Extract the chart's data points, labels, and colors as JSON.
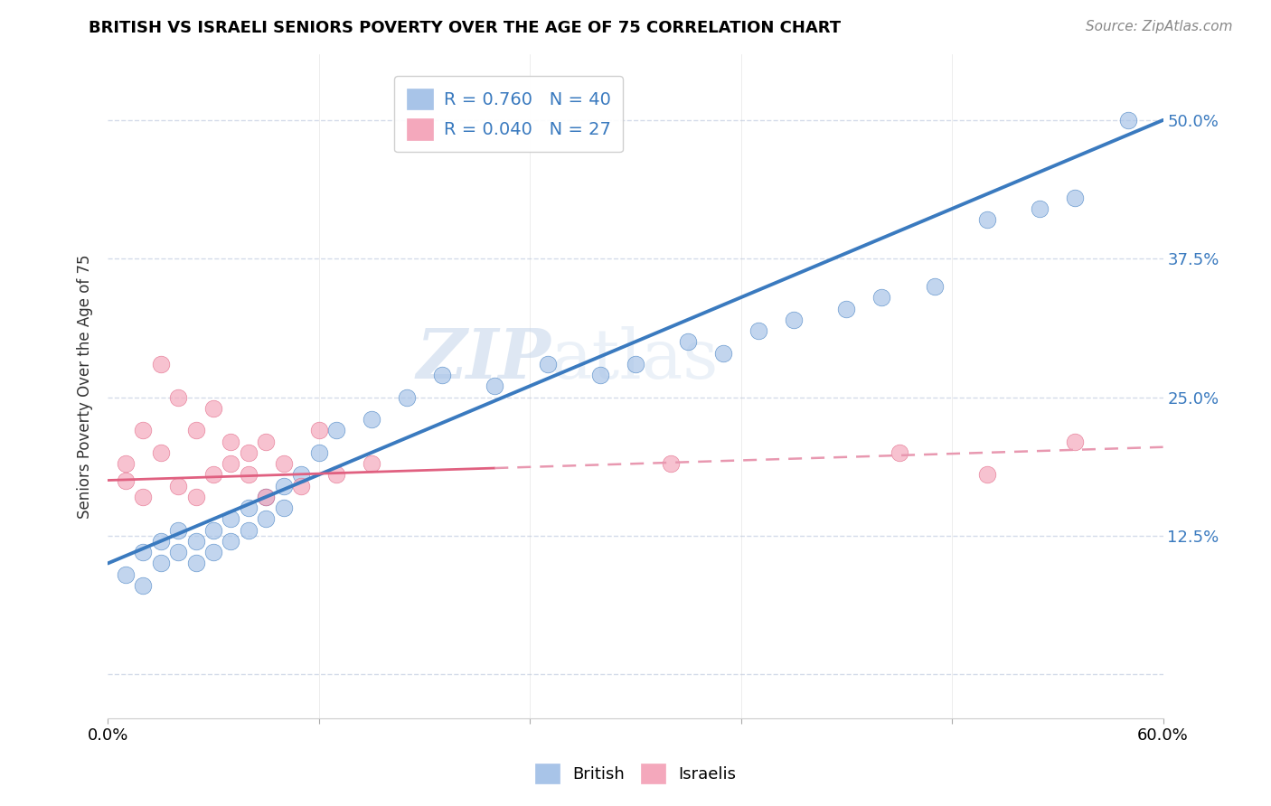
{
  "title": "BRITISH VS ISRAELI SENIORS POVERTY OVER THE AGE OF 75 CORRELATION CHART",
  "source": "Source: ZipAtlas.com",
  "ylabel": "Seniors Poverty Over the Age of 75",
  "xlabel": "",
  "xlim": [
    0.0,
    0.6
  ],
  "ylim": [
    -0.04,
    0.56
  ],
  "yticks": [
    0.0,
    0.125,
    0.25,
    0.375,
    0.5
  ],
  "ytick_labels_right": [
    "",
    "12.5%",
    "25.0%",
    "37.5%",
    "50.0%"
  ],
  "xtick_vals": [
    0.0,
    0.12,
    0.24,
    0.36,
    0.48,
    0.6
  ],
  "xtick_labels": [
    "0.0%",
    "",
    "",
    "",
    "",
    "60.0%"
  ],
  "british_color": "#a8c4e8",
  "israeli_color": "#f4a8bc",
  "british_line_color": "#3a7abf",
  "israeli_line_solid_color": "#e06080",
  "israeli_line_dash_color": "#e898b0",
  "R_british": 0.76,
  "N_british": 40,
  "R_israeli": 0.04,
  "N_israeli": 27,
  "legend_label_british": "British",
  "legend_label_israeli": "Israelis",
  "watermark_zip": "ZIP",
  "watermark_atlas": "atlas",
  "background_color": "#ffffff",
  "plot_bg_color": "#ffffff",
  "grid_color": "#d0d8e8",
  "title_fontsize": 13,
  "source_fontsize": 11,
  "tick_fontsize": 13,
  "brit_slope": 0.667,
  "brit_intercept": 0.1,
  "isr_slope": 0.05,
  "isr_intercept": 0.175,
  "british_x": [
    0.01,
    0.02,
    0.02,
    0.03,
    0.03,
    0.04,
    0.04,
    0.05,
    0.05,
    0.06,
    0.06,
    0.07,
    0.07,
    0.08,
    0.08,
    0.09,
    0.09,
    0.1,
    0.1,
    0.11,
    0.12,
    0.13,
    0.15,
    0.17,
    0.19,
    0.22,
    0.25,
    0.28,
    0.3,
    0.33,
    0.35,
    0.37,
    0.39,
    0.42,
    0.44,
    0.47,
    0.5,
    0.53,
    0.55,
    0.58
  ],
  "british_y": [
    0.09,
    0.11,
    0.08,
    0.1,
    0.12,
    0.11,
    0.13,
    0.12,
    0.1,
    0.13,
    0.11,
    0.14,
    0.12,
    0.15,
    0.13,
    0.16,
    0.14,
    0.17,
    0.15,
    0.18,
    0.2,
    0.22,
    0.23,
    0.25,
    0.27,
    0.26,
    0.28,
    0.27,
    0.28,
    0.3,
    0.29,
    0.31,
    0.32,
    0.33,
    0.34,
    0.35,
    0.41,
    0.42,
    0.43,
    0.5
  ],
  "israeli_x": [
    0.01,
    0.01,
    0.02,
    0.02,
    0.03,
    0.03,
    0.04,
    0.04,
    0.05,
    0.05,
    0.06,
    0.06,
    0.07,
    0.07,
    0.08,
    0.08,
    0.09,
    0.09,
    0.1,
    0.11,
    0.12,
    0.13,
    0.15,
    0.32,
    0.45,
    0.5,
    0.55
  ],
  "israeli_y": [
    0.175,
    0.19,
    0.16,
    0.22,
    0.2,
    0.28,
    0.17,
    0.25,
    0.16,
    0.22,
    0.18,
    0.24,
    0.21,
    0.19,
    0.18,
    0.2,
    0.21,
    0.16,
    0.19,
    0.17,
    0.22,
    0.18,
    0.19,
    0.19,
    0.2,
    0.18,
    0.21
  ]
}
